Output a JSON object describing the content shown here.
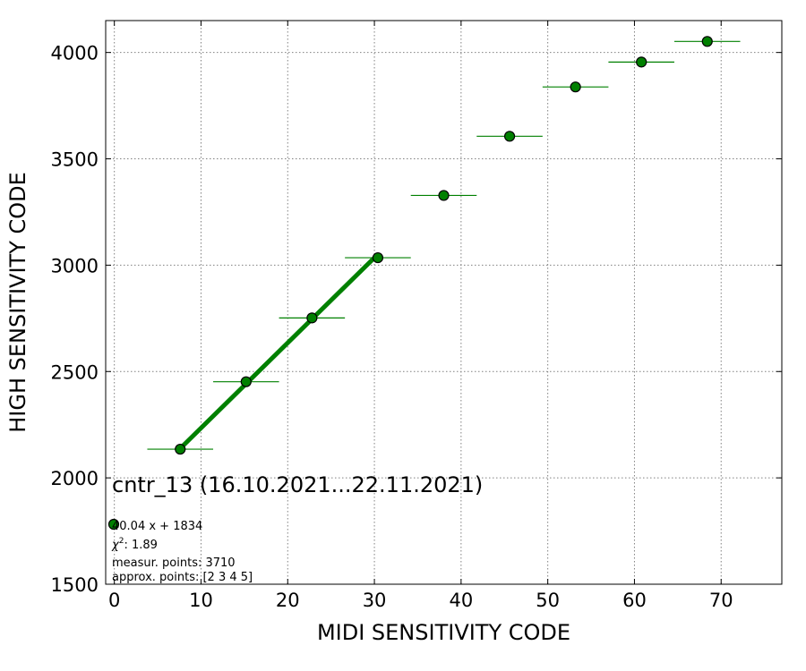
{
  "chart_data": {
    "type": "scatter",
    "xlabel": "MIDI SENSITIVITY CODE",
    "ylabel": "HIGH SENSITIVITY CODE",
    "xlim": [
      -1,
      77
    ],
    "ylim": [
      1500,
      4150
    ],
    "xticks": [
      0,
      10,
      20,
      30,
      40,
      50,
      60,
      70
    ],
    "yticks": [
      1500,
      2000,
      2500,
      3000,
      3500,
      4000
    ],
    "grid": true,
    "colors": {
      "points": "#008000",
      "edge": "#000000",
      "fit": "#008000"
    },
    "series": [
      {
        "points": [
          {
            "x": 7.6,
            "y": 2135,
            "xerr": 3.8
          },
          {
            "x": 15.2,
            "y": 2452,
            "xerr": 3.8
          },
          {
            "x": 22.8,
            "y": 2752,
            "xerr": 3.8
          },
          {
            "x": 30.4,
            "y": 3035,
            "xerr": 3.8
          },
          {
            "x": 38.0,
            "y": 3328,
            "xerr": 3.8
          },
          {
            "x": 45.6,
            "y": 3606,
            "xerr": 3.8
          },
          {
            "x": 53.2,
            "y": 3838,
            "xerr": 3.8
          },
          {
            "x": 60.8,
            "y": 3955,
            "xerr": 3.8
          },
          {
            "x": 68.4,
            "y": 4052,
            "xerr": 3.8
          }
        ]
      }
    ],
    "fit": {
      "slope": 40.04,
      "intercept": 1834,
      "x_range": [
        7.6,
        30.4
      ]
    },
    "annotations": {
      "title": "cntr_13 (16.10.2021...22.11.2021)",
      "legend_text": "40.04 x + 1834",
      "chi2_label": "χ",
      "chi2_sup": "2",
      "chi2_value": ": 1.89",
      "measur_points": "measur. points: 3710",
      "approx_points": "approx. points: [2 3 4 5]"
    }
  }
}
